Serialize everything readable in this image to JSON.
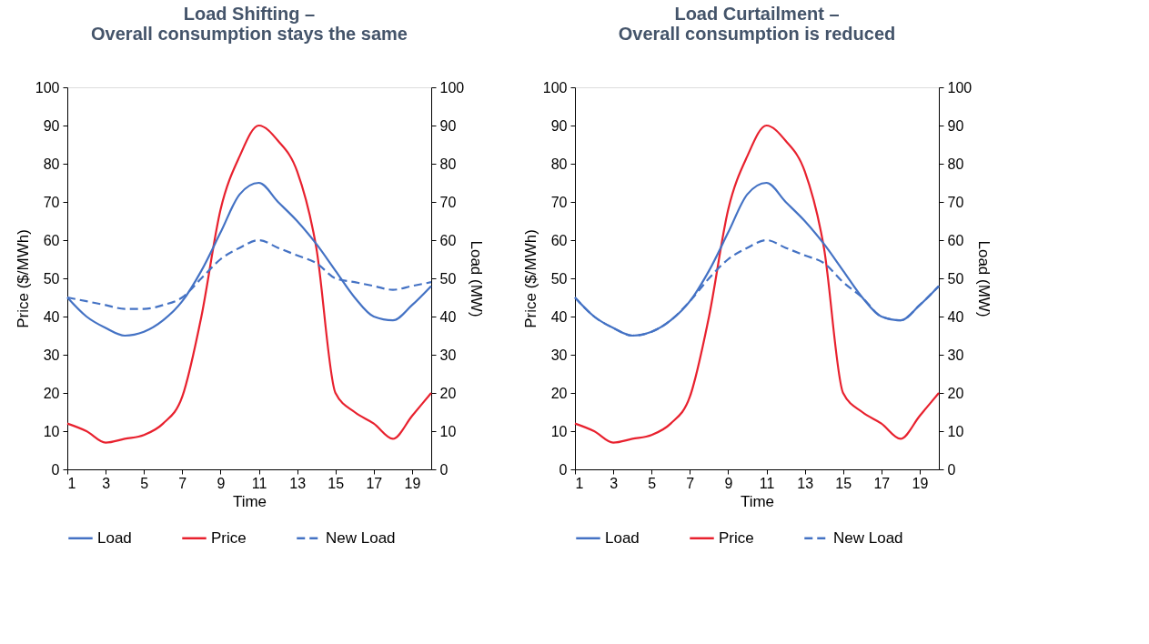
{
  "chart_data": [
    {
      "type": "line",
      "title": "Load Shifting –\nOverall consumption stays the same",
      "xlabel": "Time",
      "ylabel": "Price ($/MWh)",
      "y2label": "Load (MW)",
      "x": [
        1,
        2,
        3,
        4,
        5,
        6,
        7,
        8,
        9,
        10,
        11,
        12,
        13,
        14,
        15,
        16,
        17,
        18,
        19,
        20
      ],
      "xlim": [
        1,
        20
      ],
      "xticks": [
        1,
        3,
        5,
        7,
        9,
        11,
        13,
        15,
        17,
        19
      ],
      "ylim": [
        0,
        100
      ],
      "yticks": [
        0,
        10,
        20,
        30,
        40,
        50,
        60,
        70,
        80,
        90,
        100
      ],
      "y2lim": [
        0,
        100
      ],
      "y2ticks": [
        0,
        10,
        20,
        30,
        40,
        50,
        60,
        70,
        80,
        90,
        100
      ],
      "grid": false,
      "legend": "bottom",
      "series": [
        {
          "name": "Load",
          "color": "#4472c4",
          "axis": "y2",
          "line_style": "solid",
          "values": [
            45,
            40,
            37,
            35,
            36,
            39,
            44,
            52,
            62,
            72,
            75,
            70,
            65,
            59,
            52,
            45,
            40,
            39,
            43,
            48
          ]
        },
        {
          "name": "Price",
          "color": "#e8212e",
          "line_style": "solid",
          "values": [
            12,
            10,
            7,
            8,
            9,
            12,
            19,
            40,
            68,
            82,
            90,
            86,
            78,
            58,
            20,
            15,
            12,
            8,
            14,
            20
          ]
        },
        {
          "name": "New Load",
          "color": "#4472c4",
          "axis": "y2",
          "line_style": "dashed",
          "values": [
            45,
            44,
            43,
            42,
            42,
            43,
            45,
            50,
            55,
            58,
            60,
            58,
            56,
            54,
            50,
            49,
            48,
            47,
            48,
            49
          ]
        }
      ]
    },
    {
      "type": "line",
      "title": "Load Curtailment –\nOverall consumption is reduced",
      "xlabel": "Time",
      "ylabel": "Price ($/MWh)",
      "y2label": "Load (MW)",
      "x": [
        1,
        2,
        3,
        4,
        5,
        6,
        7,
        8,
        9,
        10,
        11,
        12,
        13,
        14,
        15,
        16,
        17,
        18,
        19,
        20
      ],
      "xlim": [
        1,
        20
      ],
      "xticks": [
        1,
        3,
        5,
        7,
        9,
        11,
        13,
        15,
        17,
        19
      ],
      "ylim": [
        0,
        100
      ],
      "yticks": [
        0,
        10,
        20,
        30,
        40,
        50,
        60,
        70,
        80,
        90,
        100
      ],
      "y2lim": [
        0,
        100
      ],
      "y2ticks": [
        0,
        10,
        20,
        30,
        40,
        50,
        60,
        70,
        80,
        90,
        100
      ],
      "grid": false,
      "legend": "bottom",
      "series": [
        {
          "name": "Load",
          "color": "#4472c4",
          "axis": "y2",
          "line_style": "solid",
          "values": [
            45,
            40,
            37,
            35,
            36,
            39,
            44,
            52,
            62,
            72,
            75,
            70,
            65,
            59,
            52,
            45,
            40,
            39,
            43,
            48
          ]
        },
        {
          "name": "Price",
          "color": "#e8212e",
          "line_style": "solid",
          "values": [
            12,
            10,
            7,
            8,
            9,
            12,
            19,
            40,
            68,
            82,
            90,
            86,
            78,
            58,
            20,
            15,
            12,
            8,
            14,
            20
          ]
        },
        {
          "name": "New Load",
          "color": "#4472c4",
          "axis": "y2",
          "line_style": "dashed",
          "values": [
            45,
            40,
            37,
            35,
            36,
            39,
            44,
            50,
            55,
            58,
            60,
            58,
            56,
            54,
            49,
            45,
            40,
            39,
            43,
            48
          ]
        }
      ]
    }
  ]
}
